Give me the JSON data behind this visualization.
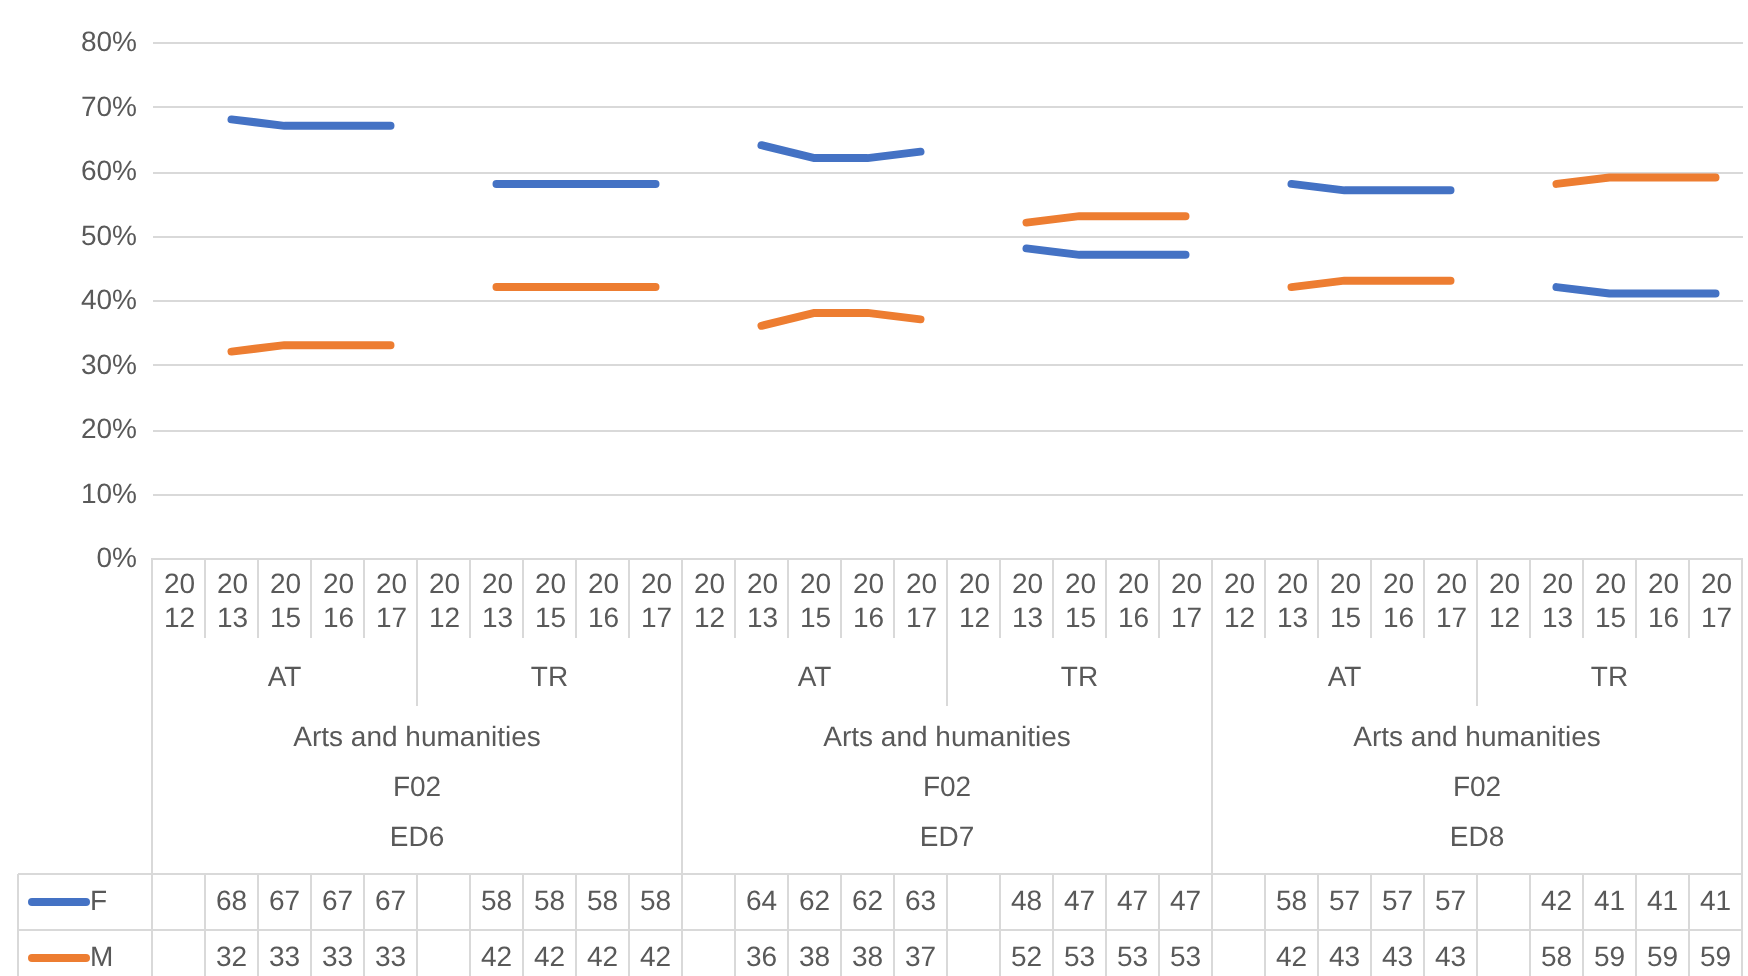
{
  "chart_data": {
    "type": "line",
    "categories": [
      "2012",
      "2013",
      "2015",
      "2016",
      "2017",
      "2012",
      "2013",
      "2015",
      "2016",
      "2017",
      "2012",
      "2013",
      "2015",
      "2016",
      "2017",
      "2012",
      "2013",
      "2015",
      "2016",
      "2017",
      "2012",
      "2013",
      "2015",
      "2016",
      "2017",
      "2012",
      "2013",
      "2015",
      "2016",
      "2017"
    ],
    "series": [
      {
        "name": "F",
        "color": "#4472c4",
        "values": [
          null,
          68,
          67,
          67,
          67,
          null,
          58,
          58,
          58,
          58,
          null,
          64,
          62,
          62,
          63,
          null,
          48,
          47,
          47,
          47,
          null,
          58,
          57,
          57,
          57,
          null,
          42,
          41,
          41,
          41
        ]
      },
      {
        "name": "M",
        "color": "#ed7d31",
        "values": [
          null,
          32,
          33,
          33,
          33,
          null,
          42,
          42,
          42,
          42,
          null,
          36,
          38,
          38,
          37,
          null,
          52,
          53,
          53,
          53,
          null,
          42,
          43,
          43,
          43,
          null,
          58,
          59,
          59,
          59
        ]
      }
    ],
    "ylim": [
      0,
      80
    ],
    "yticks": [
      {
        "value": 0,
        "label": "0%"
      },
      {
        "value": 10,
        "label": "10%"
      },
      {
        "value": 20,
        "label": "20%"
      },
      {
        "value": 30,
        "label": "30%"
      },
      {
        "value": 40,
        "label": "40%"
      },
      {
        "value": 50,
        "label": "50%"
      },
      {
        "value": 60,
        "label": "60%"
      },
      {
        "value": 70,
        "label": "70%"
      },
      {
        "value": 80,
        "label": "80%"
      }
    ],
    "grid": "y",
    "legend": "bottom",
    "data_labels": true,
    "annotations": [
      "AT",
      "TR",
      "AT",
      "TR",
      "AT",
      "TR",
      "Arts and humanities",
      "Arts and humanities",
      "Arts and humanities",
      "F02",
      "F02",
      "F02",
      "ED6",
      "ED7",
      "ED8"
    ]
  }
}
